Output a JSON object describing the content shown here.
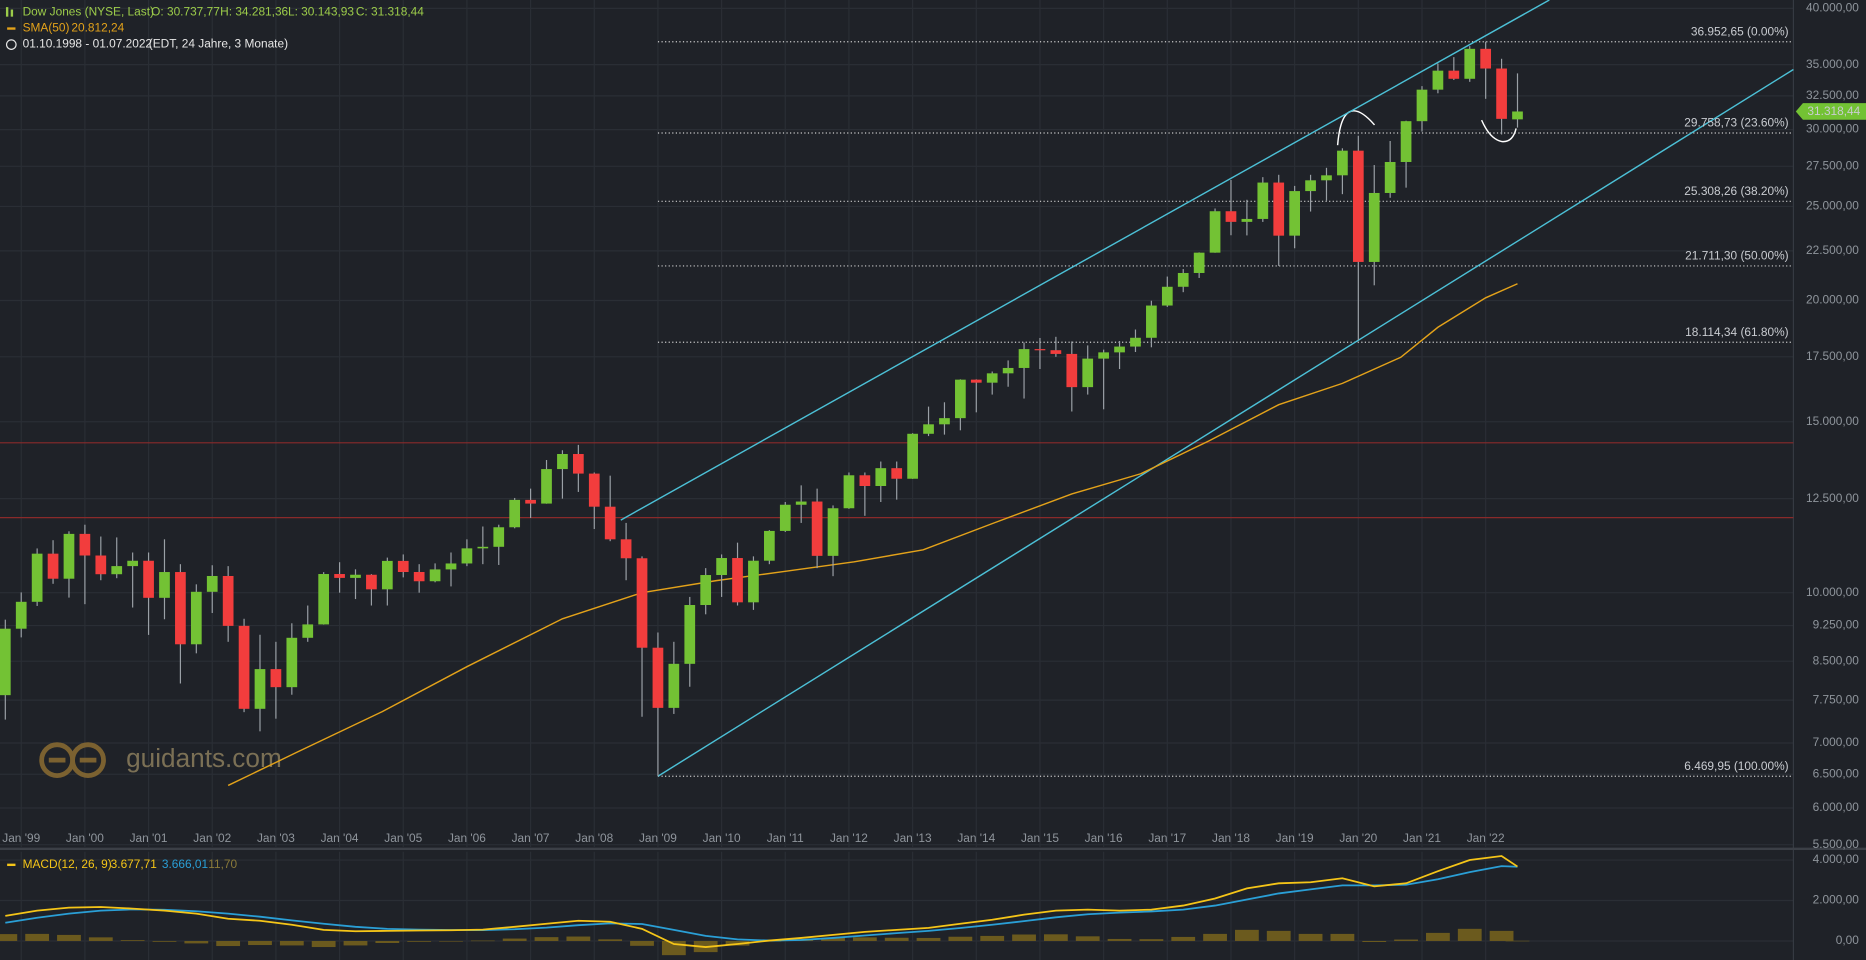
{
  "chart_data": [
    {
      "type": "candlestick",
      "title": "Dow Jones (NYSE, Last)",
      "ohlc_labels": [
        "O: 30.737,77",
        "H: 34.281,36",
        "L: 30.143,93",
        "C: 31.318,44"
      ],
      "subtitle": "01.10.1998 - 01.07.2022",
      "period_note": "(EDT, 24 Jahre, 3 Monate)",
      "last_label": "31.318,44",
      "watermark": "guidants.com",
      "log_scale": true,
      "grid": true,
      "colors": {
        "up": "#73c234",
        "down": "#f23d3d",
        "wick": "#9aa0a6"
      },
      "xlim": [
        "1998-09",
        "2026-11"
      ],
      "xticks": [
        {
          "value": "1999-01",
          "label": "Jan '99"
        },
        {
          "value": "2000-01",
          "label": "Jan '00"
        },
        {
          "value": "2001-01",
          "label": "Jan '01"
        },
        {
          "value": "2002-01",
          "label": "Jan '02"
        },
        {
          "value": "2003-01",
          "label": "Jan '03"
        },
        {
          "value": "2004-01",
          "label": "Jan '04"
        },
        {
          "value": "2005-01",
          "label": "Jan '05"
        },
        {
          "value": "2006-01",
          "label": "Jan '06"
        },
        {
          "value": "2007-01",
          "label": "Jan '07"
        },
        {
          "value": "2008-01",
          "label": "Jan '08"
        },
        {
          "value": "2009-01",
          "label": "Jan '09"
        },
        {
          "value": "2010-01",
          "label": "Jan '10"
        },
        {
          "value": "2011-01",
          "label": "Jan '11"
        },
        {
          "value": "2012-01",
          "label": "Jan '12"
        },
        {
          "value": "2013-01",
          "label": "Jan '13"
        },
        {
          "value": "2014-01",
          "label": "Jan '14"
        },
        {
          "value": "2015-01",
          "label": "Jan '15"
        },
        {
          "value": "2016-01",
          "label": "Jan '16"
        },
        {
          "value": "2017-01",
          "label": "Jan '17"
        },
        {
          "value": "2018-01",
          "label": "Jan '18"
        },
        {
          "value": "2019-01",
          "label": "Jan '19"
        },
        {
          "value": "2020-01",
          "label": "Jan '20"
        },
        {
          "value": "2021-01",
          "label": "Jan '21"
        },
        {
          "value": "2022-01",
          "label": "Jan '22"
        }
      ],
      "ylim": [
        5470,
        40800
      ],
      "yticks": [
        {
          "value": 40000,
          "label": "40.000,00"
        },
        {
          "value": 35000,
          "label": "35.000,00"
        },
        {
          "value": 32500,
          "label": "32.500,00"
        },
        {
          "value": 30000,
          "label": "30.000,00"
        },
        {
          "value": 27500,
          "label": "27.500,00"
        },
        {
          "value": 25000,
          "label": "25.000,00"
        },
        {
          "value": 22500,
          "label": "22.500,00"
        },
        {
          "value": 20000,
          "label": "20.000,00"
        },
        {
          "value": 17500,
          "label": "17.500,00"
        },
        {
          "value": 15000,
          "label": "15.000,00"
        },
        {
          "value": 12500,
          "label": "12.500,00"
        },
        {
          "value": 10000,
          "label": "10.000,00"
        },
        {
          "value": 9250,
          "label": "9.250,00"
        },
        {
          "value": 8500,
          "label": "8.500,00"
        },
        {
          "value": 7750,
          "label": "7.750,00"
        },
        {
          "value": 7000,
          "label": "7.000,00"
        },
        {
          "value": 6500,
          "label": "6.500,00"
        },
        {
          "value": 6000,
          "label": "6.000,00"
        },
        {
          "value": 5500,
          "label": "5.500,00"
        }
      ],
      "x": [
        "1998-10",
        "1999-01",
        "1999-04",
        "1999-07",
        "1999-10",
        "2000-01",
        "2000-04",
        "2000-07",
        "2000-10",
        "2001-01",
        "2001-04",
        "2001-07",
        "2001-10",
        "2002-01",
        "2002-04",
        "2002-07",
        "2002-10",
        "2003-01",
        "2003-04",
        "2003-07",
        "2003-10",
        "2004-01",
        "2004-04",
        "2004-07",
        "2004-10",
        "2005-01",
        "2005-04",
        "2005-07",
        "2005-10",
        "2006-01",
        "2006-04",
        "2006-07",
        "2006-10",
        "2007-01",
        "2007-04",
        "2007-07",
        "2007-10",
        "2008-01",
        "2008-04",
        "2008-07",
        "2008-10",
        "2009-01",
        "2009-04",
        "2009-07",
        "2009-10",
        "2010-01",
        "2010-04",
        "2010-07",
        "2010-10",
        "2011-01",
        "2011-04",
        "2011-07",
        "2011-10",
        "2012-01",
        "2012-04",
        "2012-07",
        "2012-10",
        "2013-01",
        "2013-04",
        "2013-07",
        "2013-10",
        "2014-01",
        "2014-04",
        "2014-07",
        "2014-10",
        "2015-01",
        "2015-04",
        "2015-07",
        "2015-10",
        "2016-01",
        "2016-04",
        "2016-07",
        "2016-10",
        "2017-01",
        "2017-04",
        "2017-07",
        "2017-10",
        "2018-01",
        "2018-04",
        "2018-07",
        "2018-10",
        "2019-01",
        "2019-04",
        "2019-07",
        "2019-10",
        "2020-01",
        "2020-04",
        "2020-07",
        "2020-10",
        "2021-01",
        "2021-04",
        "2021-07",
        "2021-10",
        "2022-01",
        "2022-04",
        "2022-07"
      ],
      "open": [
        7842,
        9181,
        9786,
        10970,
        10337,
        11497,
        10922,
        10448,
        10651,
        10787,
        9879,
        10502,
        8848,
        10021,
        10404,
        9243,
        7592,
        8342,
        7992,
        8985,
        9275,
        10453,
        10357,
        10435,
        10080,
        10783,
        10503,
        10275,
        10568,
        10718,
        11109,
        11150,
        11679,
        12463,
        12354,
        13408,
        13896,
        13265,
        12263,
        11350,
        10851,
        8776,
        7609,
        8447,
        9712,
        10428,
        10857,
        9774,
        10788,
        11578,
        12320,
        12414,
        10913,
        12218,
        13212,
        12880,
        13437,
        13104,
        14579,
        14910,
        15130,
        16577,
        16458,
        16827,
        17043,
        17823,
        17776,
        17620,
        16285,
        17425,
        17685,
        17930,
        18308,
        19763,
        20663,
        21350,
        22405,
        24719,
        24103,
        24271,
        26458,
        23327,
        25929,
        26600,
        26917,
        28538,
        21917,
        25813,
        27782,
        30606,
        32982,
        34503,
        33844,
        36338,
        34678,
        30737.77
      ],
      "high": [
        9380,
        10007,
        11107,
        11326,
        11568,
        11750,
        11425,
        11401,
        11000,
        11000,
        11350,
        10700,
        10200,
        10673,
        10650,
        9400,
        9050,
        8900,
        9300,
        9700,
        10500,
        10750,
        10570,
        10450,
        10868,
        10950,
        10700,
        10720,
        11000,
        11350,
        11700,
        11750,
        12520,
        12800,
        13700,
        14020,
        14200,
        13300,
        13200,
        11800,
        10900,
        9100,
        8900,
        9900,
        10600,
        10950,
        11260,
        10900,
        11600,
        12400,
        12900,
        12800,
        12300,
        13300,
        13300,
        13650,
        13650,
        14600,
        15550,
        15710,
        16590,
        16590,
        16900,
        17350,
        18100,
        18300,
        18350,
        18150,
        17980,
        17800,
        18170,
        18670,
        19990,
        21170,
        21550,
        22420,
        24880,
        26620,
        25400,
        26800,
        26950,
        26250,
        26950,
        27400,
        28700,
        29570,
        27580,
        29200,
        30640,
        33260,
        35090,
        35630,
        36570,
        36952.65,
        35490,
        34281.36
      ],
      "low": [
        7400,
        8994,
        9690,
        10213,
        9884,
        9731,
        10300,
        10350,
        9654,
        9047,
        9389,
        8062,
        8660,
        9529,
        8900,
        7532,
        7197,
        7416,
        7850,
        8900,
        9270,
        10000,
        9850,
        9700,
        9700,
        10370,
        10000,
        10250,
        10150,
        10650,
        10700,
        10680,
        11650,
        11940,
        12350,
        12500,
        12700,
        11630,
        11300,
        10300,
        7450,
        6469.95,
        7500,
        8000,
        9500,
        9900,
        9700,
        9600,
        10700,
        11550,
        11800,
        10600,
        10400,
        12200,
        12000,
        12400,
        12470,
        13100,
        14500,
        14550,
        14700,
        15340,
        16000,
        16300,
        15850,
        17000,
        17500,
        15370,
        16000,
        15450,
        17000,
        17700,
        17900,
        19700,
        20400,
        21100,
        22400,
        23350,
        23340,
        24100,
        21710,
        22640,
        24700,
        25340,
        25740,
        18214,
        20735,
        25520,
        26140,
        29860,
        32700,
        33750,
        33600,
        32272,
        29653,
        30143.93
      ],
      "close": [
        9181,
        9786,
        10970,
        10337,
        11497,
        10922,
        10448,
        10651,
        10787,
        9879,
        10502,
        8848,
        10021,
        10404,
        9243,
        7592,
        8342,
        7992,
        8985,
        9275,
        10453,
        10357,
        10435,
        10080,
        10783,
        10503,
        10275,
        10568,
        10718,
        11109,
        11150,
        11679,
        12463,
        12354,
        13408,
        13896,
        13265,
        12263,
        11350,
        10851,
        8776,
        7609,
        8447,
        9712,
        10428,
        10857,
        9774,
        10788,
        11578,
        12320,
        12414,
        10913,
        12218,
        13212,
        12880,
        13437,
        13104,
        14579,
        14910,
        15130,
        16577,
        16458,
        16827,
        17043,
        17823,
        17776,
        17620,
        16285,
        17425,
        17685,
        17930,
        18308,
        19763,
        20663,
        21350,
        22405,
        24719,
        24103,
        24271,
        26458,
        23327,
        25929,
        26600,
        26917,
        28538,
        21917,
        25813,
        27782,
        30606,
        32982,
        34503,
        33844,
        36338,
        34678,
        30775,
        31318.44
      ],
      "sma": {
        "name": "SMA(50)",
        "value_label": "20.812,24",
        "color": "#e3a21a",
        "x": [
          "2002-04",
          "2003-05",
          "2004-09",
          "2006-01",
          "2007-07",
          "2008-10",
          "2009-12",
          "2011-01",
          "2012-02",
          "2013-03",
          "2014-04",
          "2015-07",
          "2016-08",
          "2017-09",
          "2018-10",
          "2019-10",
          "2020-09",
          "2021-04",
          "2022-01",
          "2022-07"
        ],
        "values": [
          6330,
          6850,
          7540,
          8390,
          9400,
          10000,
          10290,
          10520,
          10760,
          11070,
          11780,
          12640,
          13260,
          14350,
          15620,
          16430,
          17480,
          18770,
          20130,
          20812.24
        ]
      },
      "fibonacci": {
        "from": "2009-01",
        "color": "#cfcfcf",
        "levels": [
          {
            "value": 36952.65,
            "label": "36.952,65 (0.00%)"
          },
          {
            "value": 29758.73,
            "label": "29.758,73 (23.60%)"
          },
          {
            "value": 25308.26,
            "label": "25.308,26 (38.20%)"
          },
          {
            "value": 21711.3,
            "label": "21.711,30 (50.00%)"
          },
          {
            "value": 18114.34,
            "label": "18.114,34 (61.80%)"
          },
          {
            "value": 6469.95,
            "label": "6.469,95 (100.00%)"
          }
        ]
      },
      "trendlines": {
        "color": "#4cc0d6",
        "lines": [
          {
            "points": [
              [
                "2009-01",
                6469.95
              ],
              [
                "2026-11",
                34600
              ]
            ]
          },
          {
            "points": [
              [
                "2008-06",
                11880
              ],
              [
                "2023-01",
                40800
              ]
            ]
          }
        ]
      },
      "hlines": {
        "color": "#8a2a2a",
        "values": [
          14270,
          11950
        ]
      }
    },
    {
      "type": "macd",
      "title": "MACD(12, 26, 9)",
      "last_labels": [
        "3.677,71",
        "3.666,01",
        "11,70"
      ],
      "colors": {
        "macd": "#f5c518",
        "signal": "#2a9fd6",
        "histogram": "#6b5a1e"
      },
      "xlim": [
        "1998-09",
        "2026-11"
      ],
      "ylim": [
        -940,
        4410
      ],
      "yticks": [
        {
          "value": 4000,
          "label": "4.000,00"
        },
        {
          "value": 2000,
          "label": "2.000,00"
        },
        {
          "value": 0,
          "label": "0,00"
        }
      ],
      "x": [
        "1998-10",
        "1999-04",
        "1999-10",
        "2000-04",
        "2000-10",
        "2001-04",
        "2001-10",
        "2002-04",
        "2002-10",
        "2003-04",
        "2003-10",
        "2004-04",
        "2004-10",
        "2005-04",
        "2005-10",
        "2006-04",
        "2006-10",
        "2007-04",
        "2007-10",
        "2008-04",
        "2008-10",
        "2009-04",
        "2009-10",
        "2010-04",
        "2010-10",
        "2011-04",
        "2011-10",
        "2012-04",
        "2012-10",
        "2013-04",
        "2013-10",
        "2014-04",
        "2014-10",
        "2015-04",
        "2015-10",
        "2016-04",
        "2016-10",
        "2017-04",
        "2017-10",
        "2018-04",
        "2018-10",
        "2019-04",
        "2019-10",
        "2020-04",
        "2020-10",
        "2021-04",
        "2021-10",
        "2022-04",
        "2022-07"
      ],
      "macd": [
        1240,
        1500,
        1650,
        1680,
        1600,
        1500,
        1350,
        1100,
        1000,
        800,
        550,
        480,
        500,
        520,
        530,
        560,
        700,
        850,
        1000,
        950,
        600,
        -150,
        -300,
        -150,
        20,
        150,
        300,
        450,
        550,
        650,
        850,
        1050,
        1300,
        1500,
        1550,
        1500,
        1550,
        1750,
        2100,
        2600,
        2850,
        2900,
        3100,
        2700,
        2850,
        3450,
        4000,
        4200,
        3677.71
      ],
      "signal": [
        900,
        1150,
        1350,
        1500,
        1560,
        1540,
        1470,
        1350,
        1200,
        1020,
        850,
        700,
        600,
        560,
        540,
        540,
        580,
        660,
        780,
        870,
        840,
        550,
        250,
        80,
        20,
        50,
        150,
        270,
        390,
        500,
        640,
        800,
        980,
        1170,
        1320,
        1400,
        1460,
        1550,
        1750,
        2050,
        2350,
        2550,
        2750,
        2750,
        2780,
        3050,
        3400,
        3700,
        3666.01
      ],
      "histogram": [
        340,
        350,
        300,
        180,
        40,
        -40,
        -120,
        -250,
        -200,
        -220,
        -300,
        -220,
        -100,
        -40,
        -10,
        20,
        120,
        190,
        220,
        80,
        -240,
        -700,
        -550,
        -230,
        0,
        100,
        150,
        180,
        160,
        150,
        210,
        250,
        320,
        330,
        230,
        100,
        90,
        200,
        350,
        550,
        500,
        350,
        350,
        -50,
        70,
        400,
        600,
        500,
        11.7
      ]
    }
  ]
}
